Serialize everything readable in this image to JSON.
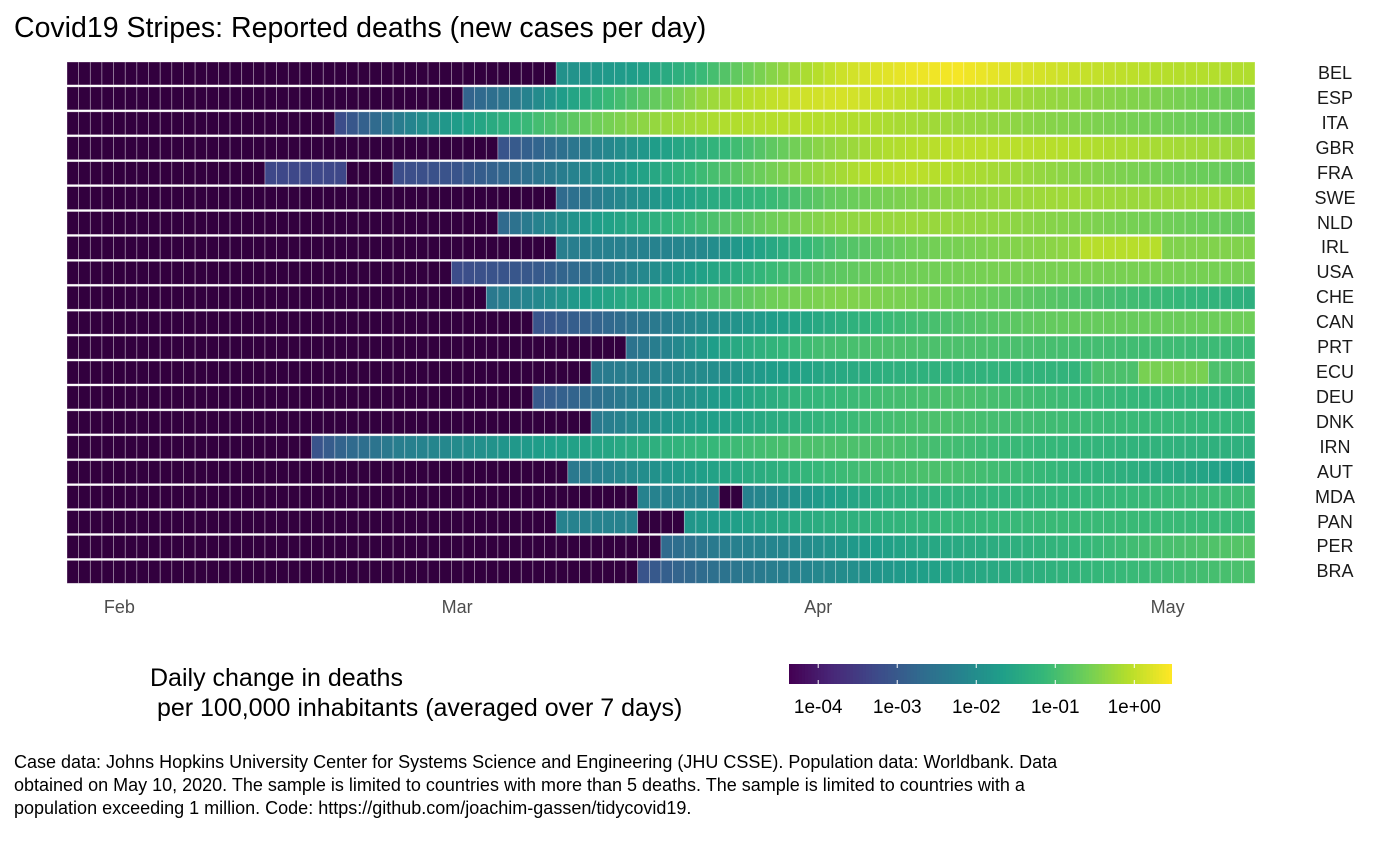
{
  "chart_data": {
    "type": "heatmap",
    "title": "Covid19 Stripes: Reported deaths (new cases per day)",
    "xlabel": "",
    "ylabel": "",
    "x_start_date": "2020-01-28",
    "n_days": 102,
    "x_ticks": [
      {
        "label": "Feb",
        "day_index": 4
      },
      {
        "label": "Mar",
        "day_index": 33
      },
      {
        "label": "Apr",
        "day_index": 64
      },
      {
        "label": "May",
        "day_index": 94
      }
    ],
    "color_scale": {
      "palette": "viridis",
      "transform": "log10",
      "range": [
        4.27e-05,
        3.0
      ],
      "below_range_color": "#440154",
      "legend_title": "Daily change in deaths\n per 100,000 inhabitants (averaged over 7 days)",
      "breaks": [
        {
          "label": "1e-04",
          "value": 0.0001
        },
        {
          "label": "1e-03",
          "value": 0.001
        },
        {
          "label": "1e-02",
          "value": 0.01
        },
        {
          "label": "1e-01",
          "value": 0.1
        },
        {
          "label": "1e+00",
          "value": 1
        }
      ]
    },
    "note": "series given as [day_index, value] keyframes; value 0 = no reported deaths; values interpolated on log scale between keyframes",
    "series": [
      {
        "name": "BEL",
        "keyframes": [
          [
            0,
            0
          ],
          [
            41,
            0
          ],
          [
            42,
            0.012
          ],
          [
            48,
            0.02
          ],
          [
            53,
            0.06
          ],
          [
            58,
            0.25
          ],
          [
            62,
            0.6
          ],
          [
            66,
            1.3
          ],
          [
            72,
            2.2
          ],
          [
            76,
            2.6
          ],
          [
            80,
            1.8
          ],
          [
            86,
            1.2
          ],
          [
            93,
            0.9
          ],
          [
            101,
            0.8
          ]
        ]
      },
      {
        "name": "ESP",
        "keyframes": [
          [
            0,
            0
          ],
          [
            33,
            0
          ],
          [
            34,
            0.0015
          ],
          [
            38,
            0.004
          ],
          [
            42,
            0.02
          ],
          [
            46,
            0.08
          ],
          [
            50,
            0.2
          ],
          [
            54,
            0.5
          ],
          [
            58,
            0.9
          ],
          [
            62,
            1.3
          ],
          [
            66,
            1.5
          ],
          [
            70,
            1.2
          ],
          [
            76,
            0.8
          ],
          [
            86,
            0.45
          ],
          [
            95,
            0.3
          ],
          [
            101,
            0.22
          ]
        ]
      },
      {
        "name": "ITA",
        "keyframes": [
          [
            0,
            0
          ],
          [
            22,
            0
          ],
          [
            23,
            0.0006
          ],
          [
            26,
            0.002
          ],
          [
            30,
            0.01
          ],
          [
            35,
            0.03
          ],
          [
            40,
            0.1
          ],
          [
            45,
            0.25
          ],
          [
            50,
            0.5
          ],
          [
            56,
            0.8
          ],
          [
            62,
            0.9
          ],
          [
            68,
            0.8
          ],
          [
            76,
            0.55
          ],
          [
            86,
            0.35
          ],
          [
            95,
            0.25
          ],
          [
            101,
            0.2
          ]
        ]
      },
      {
        "name": "GBR",
        "keyframes": [
          [
            0,
            0
          ],
          [
            36,
            0
          ],
          [
            37,
            0.0008
          ],
          [
            41,
            0.002
          ],
          [
            45,
            0.006
          ],
          [
            50,
            0.02
          ],
          [
            55,
            0.06
          ],
          [
            60,
            0.18
          ],
          [
            64,
            0.4
          ],
          [
            70,
            0.8
          ],
          [
            76,
            1.0
          ],
          [
            84,
            0.9
          ],
          [
            92,
            0.7
          ],
          [
            101,
            0.55
          ]
        ]
      },
      {
        "name": "FRA",
        "keyframes": [
          [
            0,
            0
          ],
          [
            16,
            0
          ],
          [
            17,
            0.0005
          ],
          [
            23,
            0.0005
          ],
          [
            24,
            0
          ],
          [
            27,
            0
          ],
          [
            28,
            0.0006
          ],
          [
            33,
            0.0008
          ],
          [
            38,
            0.002
          ],
          [
            43,
            0.006
          ],
          [
            48,
            0.02
          ],
          [
            53,
            0.07
          ],
          [
            58,
            0.2
          ],
          [
            63,
            0.45
          ],
          [
            68,
            0.85
          ],
          [
            72,
            1.0
          ],
          [
            78,
            0.7
          ],
          [
            86,
            0.4
          ],
          [
            95,
            0.25
          ],
          [
            101,
            0.2
          ]
        ]
      },
      {
        "name": "SWE",
        "keyframes": [
          [
            0,
            0
          ],
          [
            41,
            0
          ],
          [
            42,
            0.002
          ],
          [
            46,
            0.006
          ],
          [
            50,
            0.015
          ],
          [
            55,
            0.04
          ],
          [
            60,
            0.08
          ],
          [
            65,
            0.2
          ],
          [
            70,
            0.3
          ],
          [
            76,
            0.45
          ],
          [
            84,
            0.6
          ],
          [
            92,
            0.55
          ],
          [
            101,
            0.6
          ]
        ]
      },
      {
        "name": "NLD",
        "keyframes": [
          [
            0,
            0
          ],
          [
            36,
            0
          ],
          [
            37,
            0.002
          ],
          [
            40,
            0.006
          ],
          [
            45,
            0.02
          ],
          [
            50,
            0.05
          ],
          [
            55,
            0.12
          ],
          [
            60,
            0.25
          ],
          [
            66,
            0.45
          ],
          [
            72,
            0.55
          ],
          [
            80,
            0.45
          ],
          [
            90,
            0.3
          ],
          [
            101,
            0.2
          ]
        ]
      },
      {
        "name": "IRL",
        "keyframes": [
          [
            0,
            0
          ],
          [
            41,
            0
          ],
          [
            42,
            0.005
          ],
          [
            50,
            0.006
          ],
          [
            54,
            0.008
          ],
          [
            58,
            0.02
          ],
          [
            62,
            0.06
          ],
          [
            66,
            0.13
          ],
          [
            72,
            0.25
          ],
          [
            80,
            0.35
          ],
          [
            86,
            0.45
          ],
          [
            87,
            0.9
          ],
          [
            93,
            0.9
          ],
          [
            94,
            0.35
          ],
          [
            101,
            0.35
          ]
        ]
      },
      {
        "name": "USA",
        "keyframes": [
          [
            0,
            0
          ],
          [
            32,
            0
          ],
          [
            33,
            0.0006
          ],
          [
            40,
            0.001
          ],
          [
            45,
            0.003
          ],
          [
            50,
            0.01
          ],
          [
            55,
            0.03
          ],
          [
            60,
            0.08
          ],
          [
            64,
            0.15
          ],
          [
            70,
            0.25
          ],
          [
            80,
            0.3
          ],
          [
            90,
            0.3
          ],
          [
            101,
            0.28
          ]
        ]
      },
      {
        "name": "CHE",
        "keyframes": [
          [
            0,
            0
          ],
          [
            35,
            0
          ],
          [
            36,
            0.004
          ],
          [
            40,
            0.008
          ],
          [
            44,
            0.02
          ],
          [
            50,
            0.06
          ],
          [
            55,
            0.12
          ],
          [
            60,
            0.25
          ],
          [
            66,
            0.35
          ],
          [
            72,
            0.3
          ],
          [
            80,
            0.2
          ],
          [
            90,
            0.1
          ],
          [
            101,
            0.05
          ]
        ]
      },
      {
        "name": "CAN",
        "keyframes": [
          [
            0,
            0
          ],
          [
            39,
            0
          ],
          [
            40,
            0.0008
          ],
          [
            45,
            0.0015
          ],
          [
            50,
            0.004
          ],
          [
            55,
            0.01
          ],
          [
            60,
            0.02
          ],
          [
            65,
            0.04
          ],
          [
            70,
            0.08
          ],
          [
            76,
            0.13
          ],
          [
            84,
            0.2
          ],
          [
            92,
            0.22
          ],
          [
            101,
            0.25
          ]
        ]
      },
      {
        "name": "PRT",
        "keyframes": [
          [
            0,
            0
          ],
          [
            47,
            0
          ],
          [
            48,
            0.003
          ],
          [
            52,
            0.008
          ],
          [
            56,
            0.03
          ],
          [
            60,
            0.06
          ],
          [
            64,
            0.1
          ],
          [
            70,
            0.12
          ],
          [
            78,
            0.12
          ],
          [
            88,
            0.1
          ],
          [
            101,
            0.08
          ]
        ]
      },
      {
        "name": "ECU",
        "keyframes": [
          [
            0,
            0
          ],
          [
            44,
            0
          ],
          [
            45,
            0.004
          ],
          [
            50,
            0.006
          ],
          [
            55,
            0.01
          ],
          [
            60,
            0.02
          ],
          [
            64,
            0.03
          ],
          [
            70,
            0.05
          ],
          [
            80,
            0.06
          ],
          [
            86,
            0.06
          ],
          [
            88,
            0.12
          ],
          [
            91,
            0.12
          ],
          [
            92,
            0.3
          ],
          [
            97,
            0.3
          ],
          [
            98,
            0.12
          ],
          [
            101,
            0.12
          ]
        ]
      },
      {
        "name": "DEU",
        "keyframes": [
          [
            0,
            0
          ],
          [
            39,
            0
          ],
          [
            40,
            0.001
          ],
          [
            43,
            0.0015
          ],
          [
            47,
            0.004
          ],
          [
            52,
            0.01
          ],
          [
            58,
            0.03
          ],
          [
            62,
            0.06
          ],
          [
            70,
            0.1
          ],
          [
            76,
            0.12
          ],
          [
            84,
            0.09
          ],
          [
            92,
            0.07
          ],
          [
            101,
            0.06
          ]
        ]
      },
      {
        "name": "DNK",
        "keyframes": [
          [
            0,
            0
          ],
          [
            44,
            0
          ],
          [
            45,
            0.004
          ],
          [
            50,
            0.012
          ],
          [
            56,
            0.025
          ],
          [
            62,
            0.05
          ],
          [
            68,
            0.09
          ],
          [
            74,
            0.12
          ],
          [
            80,
            0.1
          ],
          [
            90,
            0.08
          ],
          [
            101,
            0.07
          ]
        ]
      },
      {
        "name": "IRN",
        "keyframes": [
          [
            0,
            0
          ],
          [
            20,
            0
          ],
          [
            21,
            0.0008
          ],
          [
            24,
            0.002
          ],
          [
            28,
            0.005
          ],
          [
            34,
            0.01
          ],
          [
            40,
            0.02
          ],
          [
            46,
            0.03
          ],
          [
            50,
            0.05
          ],
          [
            56,
            0.08
          ],
          [
            62,
            0.12
          ],
          [
            70,
            0.12
          ],
          [
            80,
            0.08
          ],
          [
            90,
            0.06
          ],
          [
            101,
            0.05
          ]
        ]
      },
      {
        "name": "AUT",
        "keyframes": [
          [
            0,
            0
          ],
          [
            42,
            0
          ],
          [
            43,
            0.004
          ],
          [
            46,
            0.006
          ],
          [
            50,
            0.012
          ],
          [
            56,
            0.03
          ],
          [
            62,
            0.06
          ],
          [
            68,
            0.1
          ],
          [
            74,
            0.12
          ],
          [
            80,
            0.09
          ],
          [
            90,
            0.05
          ],
          [
            96,
            0.03
          ],
          [
            101,
            0.02
          ]
        ]
      },
      {
        "name": "MDA",
        "keyframes": [
          [
            0,
            0
          ],
          [
            48,
            0
          ],
          [
            49,
            0.006
          ],
          [
            55,
            0.006
          ],
          [
            56,
            0
          ],
          [
            57,
            0
          ],
          [
            58,
            0.006
          ],
          [
            62,
            0.012
          ],
          [
            66,
            0.025
          ],
          [
            70,
            0.05
          ],
          [
            76,
            0.06
          ],
          [
            86,
            0.07
          ],
          [
            101,
            0.09
          ]
        ]
      },
      {
        "name": "PAN",
        "keyframes": [
          [
            0,
            0
          ],
          [
            41,
            0
          ],
          [
            42,
            0.006
          ],
          [
            48,
            0.006
          ],
          [
            49,
            0
          ],
          [
            52,
            0
          ],
          [
            53,
            0.015
          ],
          [
            60,
            0.03
          ],
          [
            66,
            0.05
          ],
          [
            74,
            0.07
          ],
          [
            84,
            0.08
          ],
          [
            101,
            0.08
          ]
        ]
      },
      {
        "name": "PER",
        "keyframes": [
          [
            0,
            0
          ],
          [
            50,
            0
          ],
          [
            51,
            0.002
          ],
          [
            56,
            0.005
          ],
          [
            62,
            0.008
          ],
          [
            66,
            0.015
          ],
          [
            72,
            0.03
          ],
          [
            78,
            0.04
          ],
          [
            84,
            0.06
          ],
          [
            92,
            0.1
          ],
          [
            101,
            0.15
          ]
        ]
      },
      {
        "name": "BRA",
        "keyframes": [
          [
            0,
            0
          ],
          [
            48,
            0
          ],
          [
            49,
            0.0008
          ],
          [
            52,
            0.0015
          ],
          [
            56,
            0.003
          ],
          [
            62,
            0.006
          ],
          [
            68,
            0.012
          ],
          [
            74,
            0.025
          ],
          [
            80,
            0.04
          ],
          [
            88,
            0.07
          ],
          [
            101,
            0.12
          ]
        ]
      }
    ],
    "caption": "Case data: Johns Hopkins University Center for Systems Science and Engineering (JHU CSSE). Population data: Worldbank. Data obtained on May 10, 2020. The sample is limited to countries with more than 5 deaths. The sample is limited to countries with a population exceeding 1 million. Code: https://github.com/joachim-gassen/tidycovid19."
  }
}
